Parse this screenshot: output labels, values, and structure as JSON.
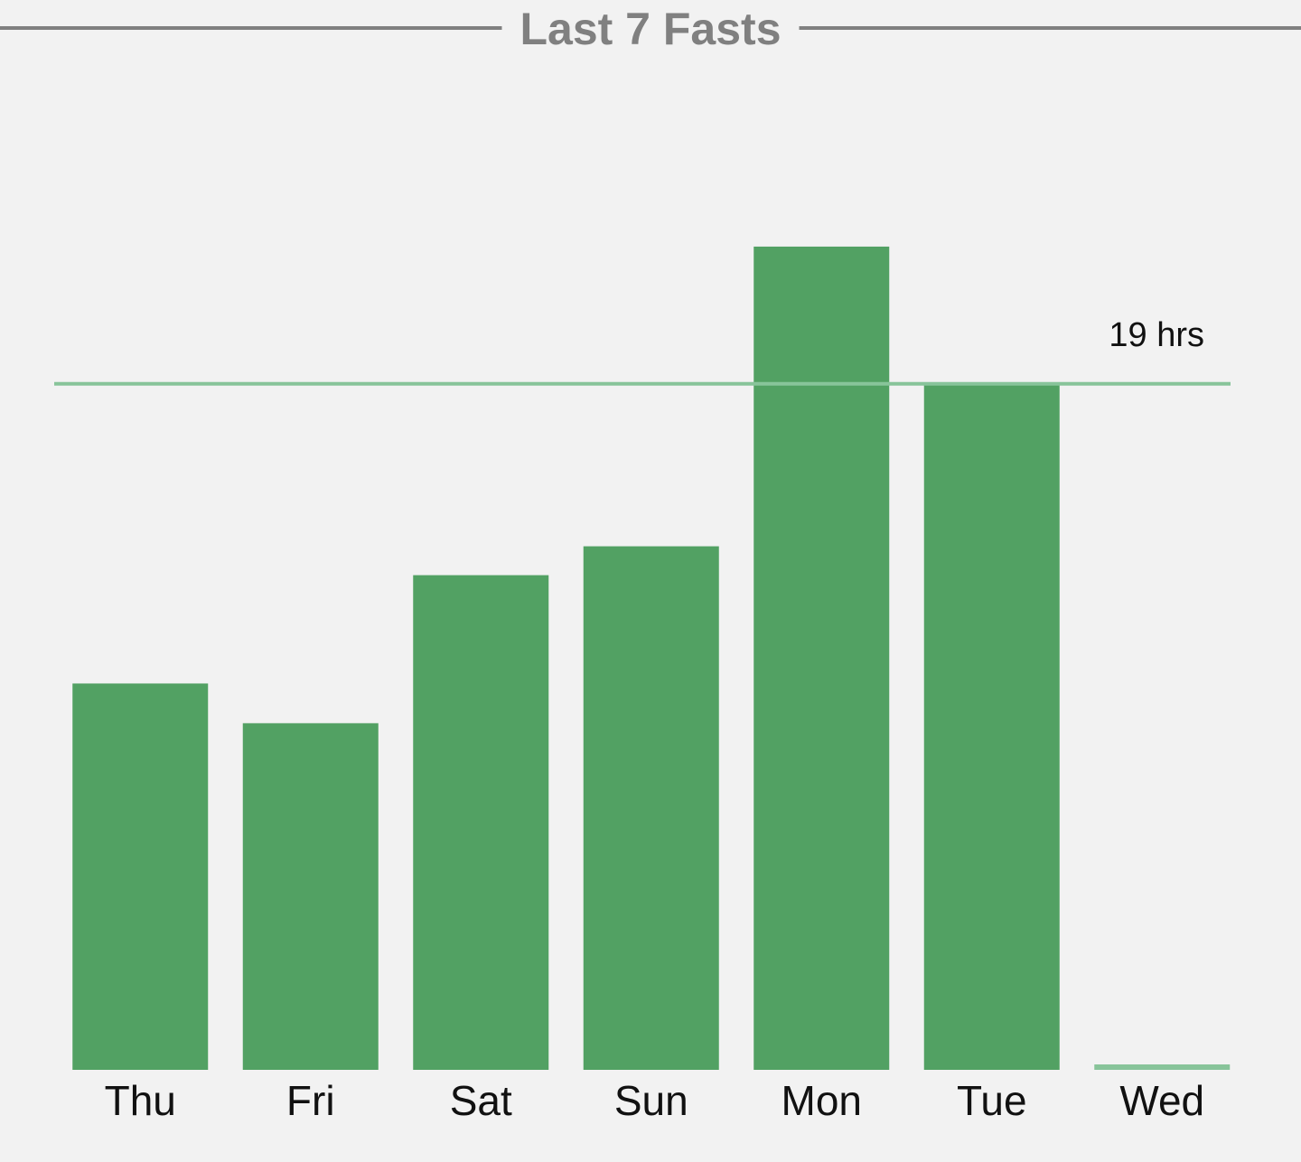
{
  "chart_data": {
    "type": "bar",
    "title": "Last 7 Fasts",
    "categories": [
      "Thu",
      "Fri",
      "Sat",
      "Sun",
      "Mon",
      "Tue",
      "Wed"
    ],
    "values": [
      10.7,
      9.6,
      13.7,
      14.5,
      22.8,
      19,
      0.15
    ],
    "colors": [
      "#52a163",
      "#52a163",
      "#52a163",
      "#52a163",
      "#52a163",
      "#52a163",
      "#88c49a"
    ],
    "ylim": [
      0,
      25
    ],
    "reference": {
      "value": 19,
      "label": "19 hrs",
      "color": "#88c49a"
    }
  }
}
